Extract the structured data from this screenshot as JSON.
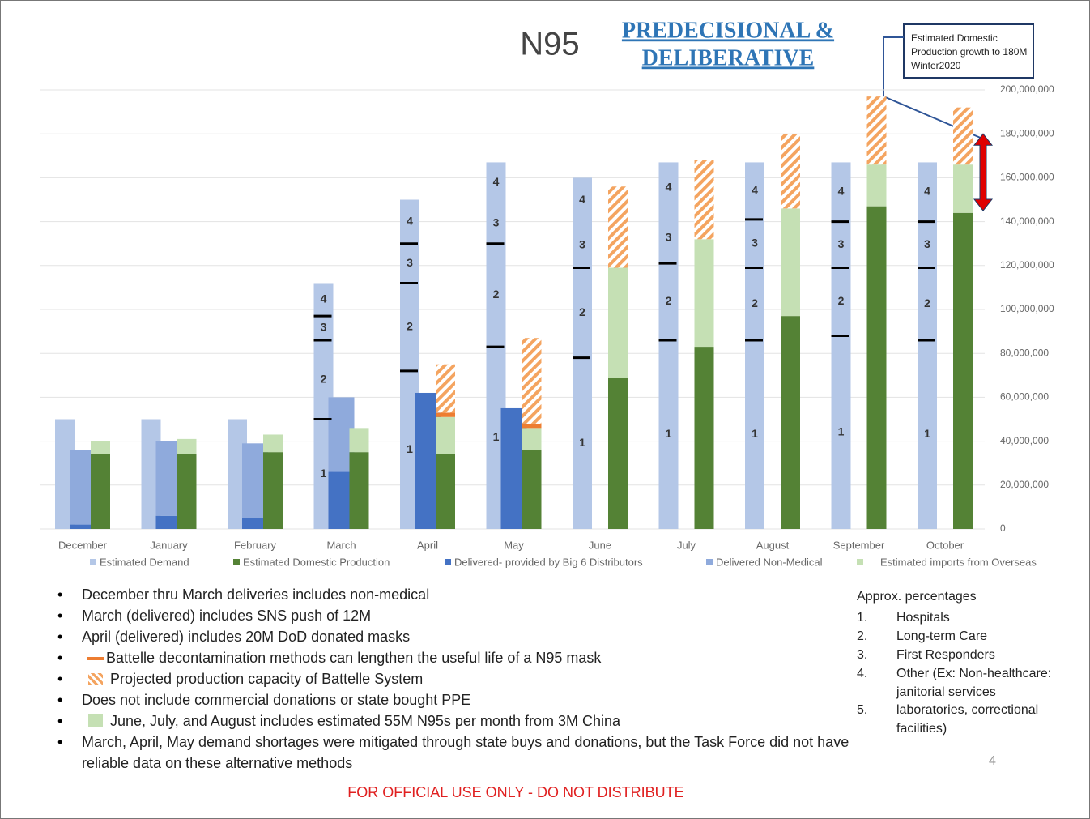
{
  "header": {
    "title": "N95",
    "stamp_lines": [
      "PREDECISIONAL &",
      "DELIBERATIVE"
    ]
  },
  "chart_data": {
    "type": "bar",
    "categories": [
      "December",
      "January",
      "February",
      "March",
      "April",
      "May",
      "June",
      "July",
      "August",
      "September",
      "October"
    ],
    "series": [
      {
        "name": "Estimated Demand",
        "color": "#b4c7e7",
        "values": [
          50000000,
          50000000,
          50000000,
          112000000,
          150000000,
          167000000,
          160000000,
          167000000,
          167000000,
          167000000,
          167000000
        ]
      },
      {
        "name": "Estimated Domestic Production",
        "color": "#548235",
        "values": [
          34000000,
          34000000,
          35000000,
          35000000,
          34000000,
          36000000,
          69000000,
          83000000,
          97000000,
          147000000,
          144000000
        ]
      },
      {
        "name": "Delivered- provided by Big 6 Distributors",
        "color": "#4472c4",
        "values": [
          2000000,
          6000000,
          5000000,
          26000000,
          62000000,
          55000000,
          null,
          null,
          null,
          null,
          null
        ]
      },
      {
        "name": "Delivered Non-Medical",
        "color": "#8faadc",
        "values": [
          34000000,
          34000000,
          34000000,
          34000000,
          null,
          null,
          null,
          null,
          null,
          null,
          null
        ]
      },
      {
        "name": "Estimated imports from Overseas",
        "color": "#c5e0b4",
        "values": [
          6000000,
          7000000,
          8000000,
          11000000,
          17000000,
          10000000,
          50000000,
          49000000,
          49000000,
          19000000,
          22000000
        ]
      }
    ],
    "battelle_decontamination": {
      "color": "#ed7d31",
      "values": [
        null,
        null,
        null,
        null,
        2000000,
        2000000,
        null,
        null,
        null,
        null,
        null
      ]
    },
    "battelle_capacity": {
      "color": "#f4a460",
      "values": [
        null,
        null,
        null,
        null,
        22000000,
        39000000,
        37000000,
        36000000,
        34000000,
        31000000,
        26000000
      ]
    },
    "tier_marks": [
      [],
      [],
      [],
      [
        50000000,
        86000000,
        97000000
      ],
      [
        72000000,
        112000000,
        130000000
      ],
      [
        83000000,
        130000000
      ],
      [
        78000000,
        119000000
      ],
      [
        86000000,
        121000000
      ],
      [
        86000000,
        119000000,
        141000000
      ],
      [
        88000000,
        119000000,
        140000000
      ],
      [
        86000000,
        119000000,
        140000000
      ]
    ],
    "tier_labels": [
      "1",
      "2",
      "3",
      "4"
    ],
    "ylim": [
      0,
      200000000
    ],
    "yticks": [
      0,
      {
        "value": 20000000,
        "label": "20,000,000"
      },
      {
        "value": 40000000,
        "label": "40,000,000"
      },
      {
        "value": 60000000,
        "label": "60,000,000"
      },
      {
        "value": 80000000,
        "label": "80,000,000"
      },
      {
        "value": 100000000,
        "label": "100,000,000"
      },
      {
        "value": 120000000,
        "label": "120,000,000"
      },
      {
        "value": 140000000,
        "label": "140,000,000"
      },
      {
        "value": 160000000,
        "label": "160,000,000"
      },
      {
        "value": 180000000,
        "label": "180,000,000"
      },
      {
        "value": 200000000,
        "label": "200,000,000"
      }
    ],
    "grid": true,
    "annotation": "Estimated Domestic Production growth to 180M Winter2020",
    "gap_arrow": [
      145000000,
      180000000
    ]
  },
  "notes": [
    "December thru March deliveries includes non-medical",
    "March (delivered) includes SNS push of 12M",
    "April (delivered) includes 20M DoD donated masks",
    "Battelle decontamination methods can lengthen the useful life of a N95 mask",
    "Projected production capacity of Battelle System",
    "Does not include commercial donations or state bought PPE",
    "June, July, and August includes estimated 55M N95s per month from 3M China",
    "March, April, May demand shortages were mitigated through state buys and donations, but the Task Force did not have reliable data on these alternative methods"
  ],
  "percentages": {
    "title": "Approx. percentages",
    "items": [
      {
        "num": "1.",
        "text": "Hospitals"
      },
      {
        "num": "2.",
        "text": "Long-term Care"
      },
      {
        "num": "3.",
        "text": "First Responders"
      },
      {
        "num": "4.",
        "text": "Other (Ex: Non-healthcare: janitorial services"
      },
      {
        "num": "5.",
        "text": "laboratories, correctional facilities)"
      }
    ]
  },
  "page_number": "4",
  "footer": "FOR OFFICIAL USE ONLY - DO NOT DISTRIBUTE"
}
